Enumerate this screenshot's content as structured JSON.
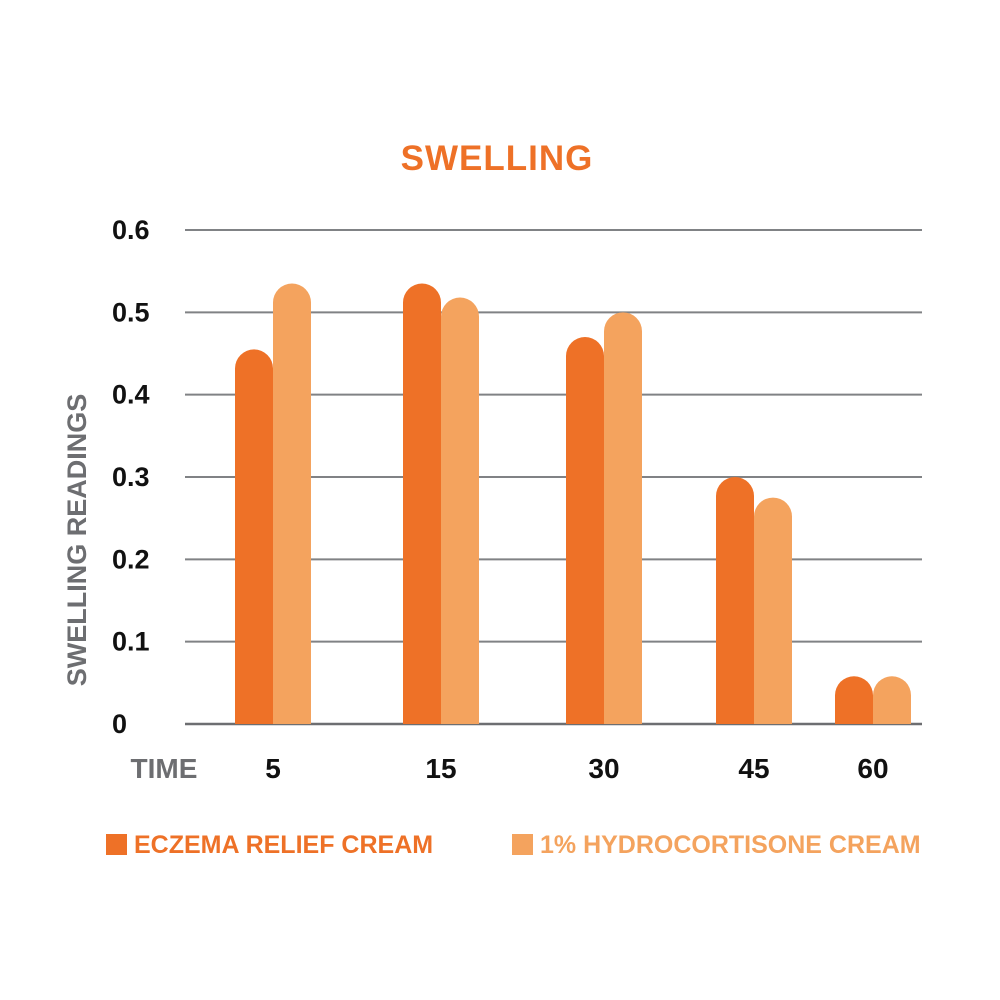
{
  "chart_data": {
    "type": "bar",
    "title": "SWELLING",
    "xlabel": "TIME",
    "ylabel": "SWELLING READINGS",
    "categories": [
      "5",
      "15",
      "30",
      "45",
      "60"
    ],
    "yticks": [
      "0",
      "0.1",
      "0.2",
      "0.3",
      "0.4",
      "0.5",
      "0.6"
    ],
    "ylim": [
      0,
      0.6
    ],
    "grid": true,
    "legend_position": "bottom",
    "series": [
      {
        "name": "ECZEMA RELIEF CREAM",
        "color": "#ee7127",
        "values": [
          0.455,
          0.535,
          0.47,
          0.3,
          0.058
        ]
      },
      {
        "name": "1% HYDROCORTISONE CREAM",
        "color": "#f4a35e",
        "values": [
          0.535,
          0.518,
          0.5,
          0.275,
          0.058
        ]
      }
    ]
  }
}
